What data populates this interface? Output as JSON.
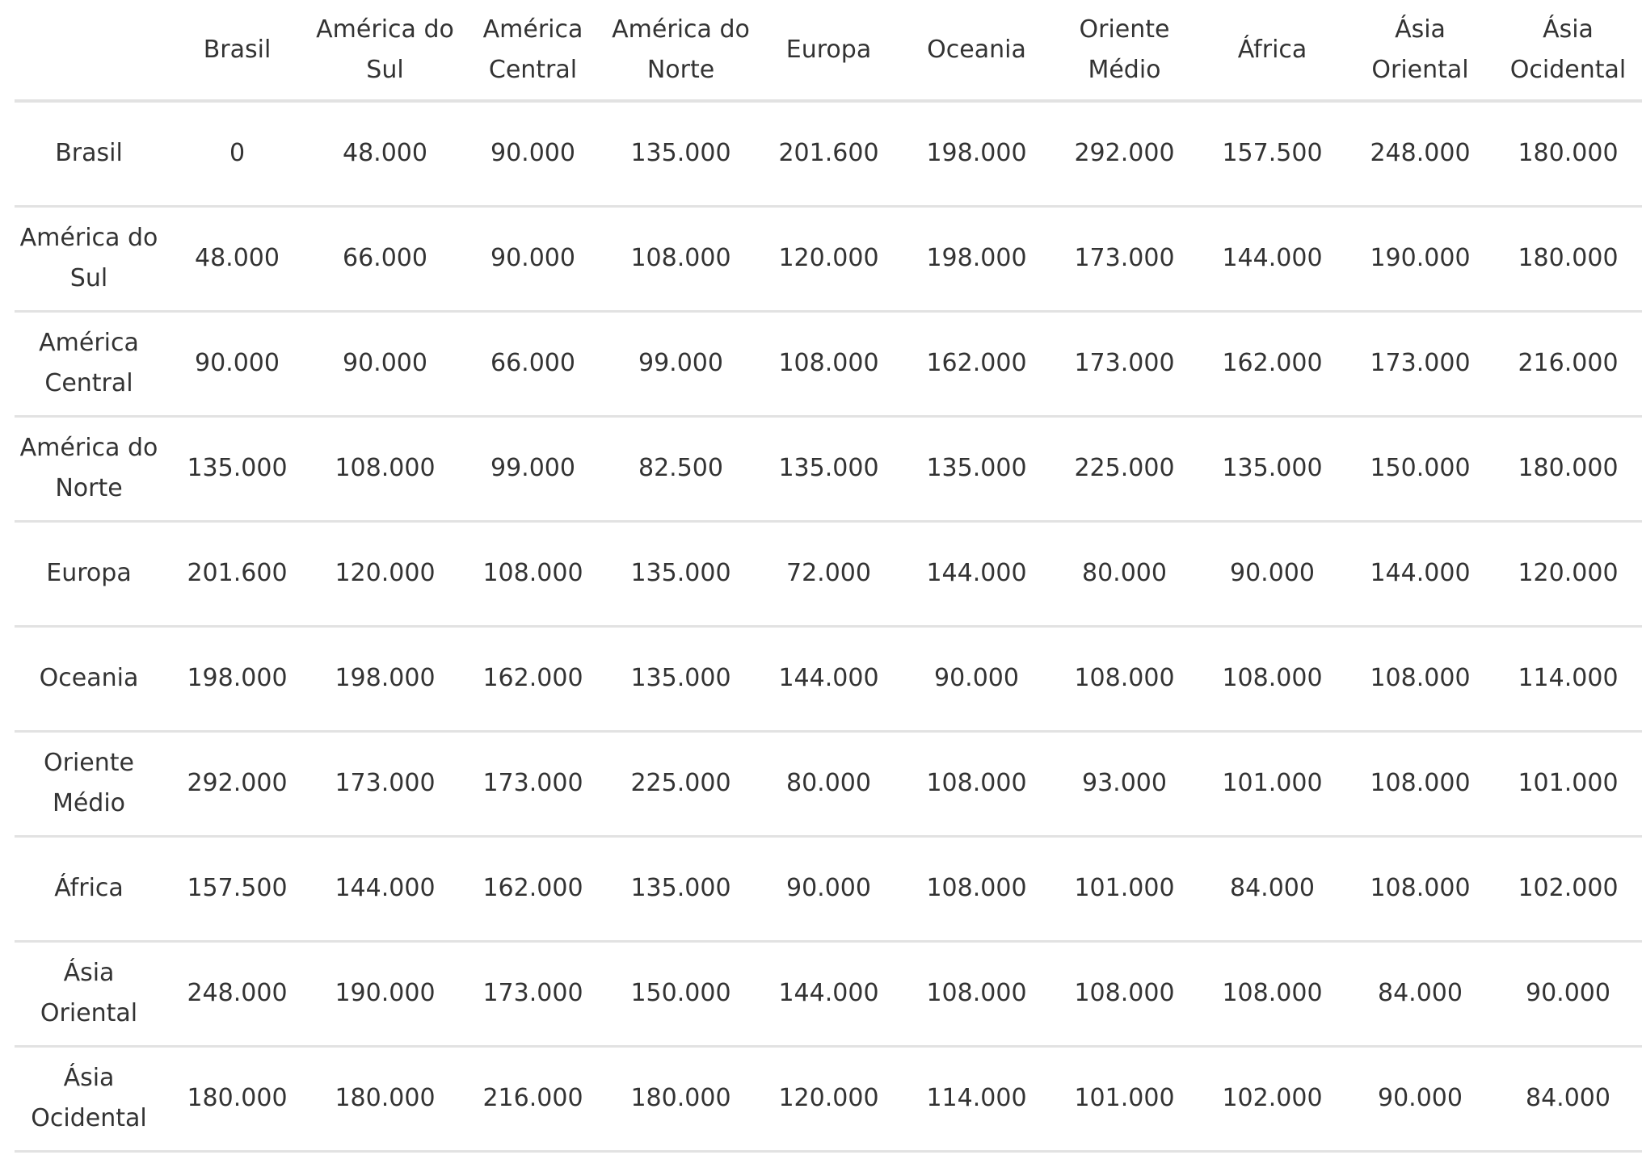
{
  "table": {
    "columns": [
      "",
      "Brasil",
      "América do Sul",
      "América Central",
      "América do Norte",
      "Europa",
      "Oceania",
      "Oriente Médio",
      "África",
      "Ásia Oriental",
      "Ásia Ocidental"
    ],
    "rows": [
      {
        "label": "Brasil",
        "values": [
          "0",
          "48.000",
          "90.000",
          "135.000",
          "201.600",
          "198.000",
          "292.000",
          "157.500",
          "248.000",
          "180.000"
        ]
      },
      {
        "label": "América do Sul",
        "values": [
          "48.000",
          "66.000",
          "90.000",
          "108.000",
          "120.000",
          "198.000",
          "173.000",
          "144.000",
          "190.000",
          "180.000"
        ]
      },
      {
        "label": "América Central",
        "values": [
          "90.000",
          "90.000",
          "66.000",
          "99.000",
          "108.000",
          "162.000",
          "173.000",
          "162.000",
          "173.000",
          "216.000"
        ]
      },
      {
        "label": "América do Norte",
        "values": [
          "135.000",
          "108.000",
          "99.000",
          "82.500",
          "135.000",
          "135.000",
          "225.000",
          "135.000",
          "150.000",
          "180.000"
        ]
      },
      {
        "label": "Europa",
        "values": [
          "201.600",
          "120.000",
          "108.000",
          "135.000",
          "72.000",
          "144.000",
          "80.000",
          "90.000",
          "144.000",
          "120.000"
        ]
      },
      {
        "label": "Oceania",
        "values": [
          "198.000",
          "198.000",
          "162.000",
          "135.000",
          "144.000",
          "90.000",
          "108.000",
          "108.000",
          "108.000",
          "114.000"
        ]
      },
      {
        "label": "Oriente Médio",
        "values": [
          "292.000",
          "173.000",
          "173.000",
          "225.000",
          "80.000",
          "108.000",
          "93.000",
          "101.000",
          "108.000",
          "101.000"
        ]
      },
      {
        "label": "África",
        "values": [
          "157.500",
          "144.000",
          "162.000",
          "135.000",
          "90.000",
          "108.000",
          "101.000",
          "84.000",
          "108.000",
          "102.000"
        ]
      },
      {
        "label": "Ásia Oriental",
        "values": [
          "248.000",
          "190.000",
          "173.000",
          "150.000",
          "144.000",
          "108.000",
          "108.000",
          "108.000",
          "84.000",
          "90.000"
        ]
      },
      {
        "label": "Ásia Ocidental",
        "values": [
          "180.000",
          "180.000",
          "216.000",
          "180.000",
          "120.000",
          "114.000",
          "101.000",
          "102.000",
          "90.000",
          "84.000"
        ]
      }
    ]
  }
}
